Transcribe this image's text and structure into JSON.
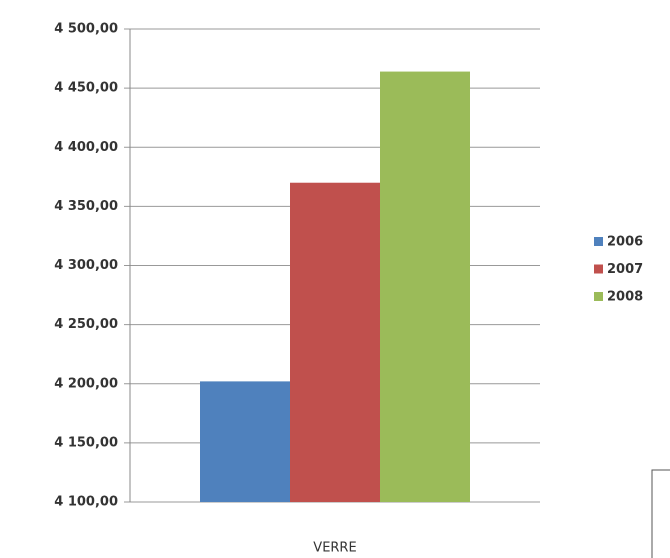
{
  "chart_data": {
    "type": "bar",
    "categories": [
      "VERRE"
    ],
    "series": [
      {
        "name": "2006",
        "color": "#4f81bd",
        "values": [
          4202
        ]
      },
      {
        "name": "2007",
        "color": "#c0504d",
        "values": [
          4370
        ]
      },
      {
        "name": "2008",
        "color": "#9bbb59",
        "values": [
          4464
        ]
      }
    ],
    "ylim": [
      4100,
      4500
    ],
    "yticks": [
      {
        "value": 4100,
        "label": "4 100,00"
      },
      {
        "value": 4150,
        "label": "4 150,00"
      },
      {
        "value": 4200,
        "label": "4 200,00"
      },
      {
        "value": 4250,
        "label": "4 250,00"
      },
      {
        "value": 4300,
        "label": "4 300,00"
      },
      {
        "value": 4350,
        "label": "4 350,00"
      },
      {
        "value": 4400,
        "label": "4 400,00"
      },
      {
        "value": 4450,
        "label": "4 450,00"
      },
      {
        "value": 4500,
        "label": "4 500,00"
      }
    ],
    "grid": true,
    "legend": "right"
  }
}
